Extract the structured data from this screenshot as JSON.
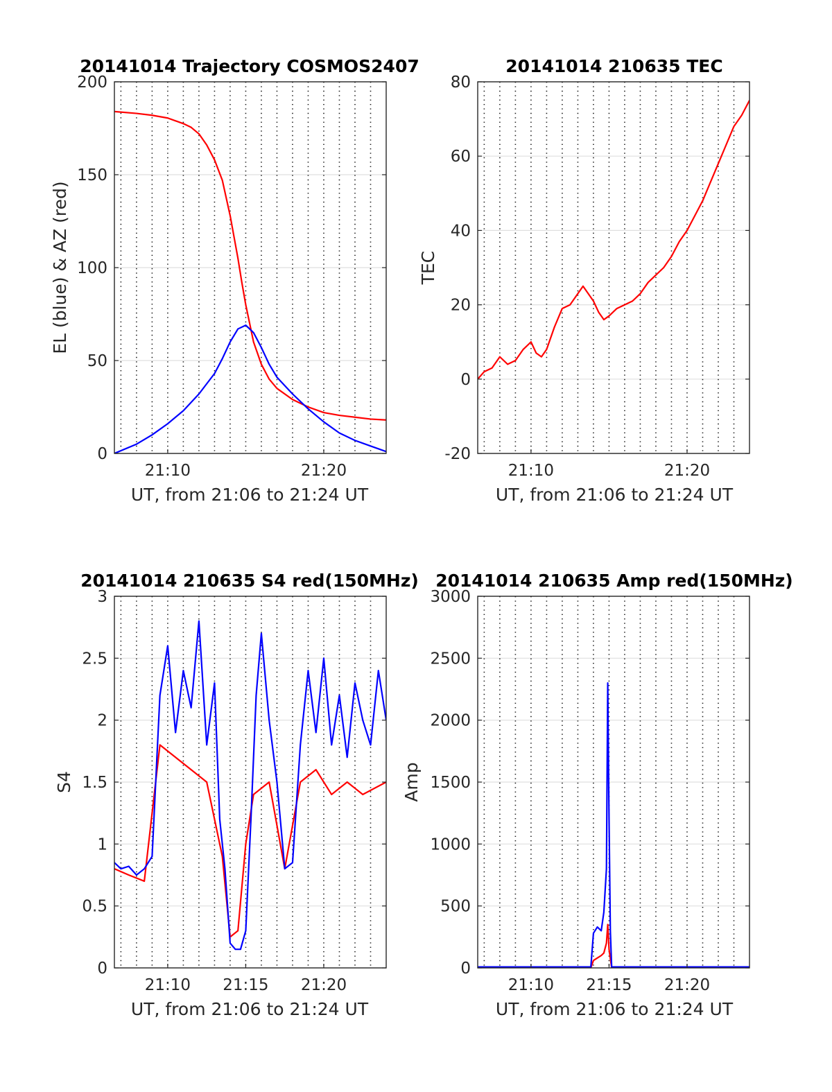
{
  "chart_data": [
    {
      "type": "line",
      "title": "20141014 Trajectory COSMOS2407",
      "xlabel": "UT, from 21:06 to 21:24 UT",
      "ylabel": "EL (blue) & AZ (red)",
      "xlim": [
        "21:06:35",
        "21:24:00"
      ],
      "ylim": [
        0,
        200
      ],
      "xticks": [
        "21:10",
        "21:20"
      ],
      "yticks": [
        0,
        50,
        100,
        150,
        200
      ],
      "colors": [
        "#ff0000",
        "#0000ff"
      ],
      "grid": true,
      "series": [
        {
          "x": [
            "21:06:35",
            "21:08:00",
            "21:09:00",
            "21:10:00",
            "21:10:30",
            "21:11:00",
            "21:11:30",
            "21:12:00",
            "21:12:30",
            "21:13:00",
            "21:13:30",
            "21:14:00",
            "21:14:30",
            "21:14:45",
            "21:15:00",
            "21:15:15",
            "21:15:30",
            "21:16:00",
            "21:16:30",
            "21:17:00",
            "21:18:00",
            "21:19:00",
            "21:20:00",
            "21:21:00",
            "21:22:00",
            "21:23:00",
            "21:24:00"
          ],
          "values": [
            184,
            183,
            182,
            180.5,
            179,
            177.5,
            175.5,
            172,
            166,
            158,
            147,
            128,
            105,
            92,
            80,
            70,
            60,
            48,
            40,
            35,
            29,
            25,
            22,
            20.5,
            19.5,
            18.5,
            18
          ]
        },
        {
          "x": [
            "21:06:35",
            "21:08:00",
            "21:09:00",
            "21:10:00",
            "21:11:00",
            "21:12:00",
            "21:13:00",
            "21:13:30",
            "21:14:00",
            "21:14:30",
            "21:15:00",
            "21:15:30",
            "21:16:00",
            "21:16:30",
            "21:17:00",
            "21:18:00",
            "21:19:00",
            "21:20:00",
            "21:21:00",
            "21:22:00",
            "21:23:00",
            "21:24:00"
          ],
          "values": [
            0,
            5,
            10,
            16,
            23,
            32,
            43,
            51,
            60,
            67,
            69,
            65,
            57,
            48,
            41,
            32,
            24,
            17,
            11,
            7,
            4,
            1
          ]
        }
      ]
    },
    {
      "type": "line",
      "title": "20141014 210635 TEC",
      "xlabel": "UT, from 21:06 to 21:24 UT",
      "ylabel": "TEC",
      "xlim": [
        "21:06:35",
        "21:24:00"
      ],
      "ylim": [
        -20,
        80
      ],
      "xticks": [
        "21:10",
        "21:20"
      ],
      "yticks": [
        -20,
        0,
        20,
        40,
        60,
        80
      ],
      "colors": [
        "#ff0000"
      ],
      "grid": true,
      "series": [
        {
          "x": [
            "21:06:35",
            "21:07:00",
            "21:07:30",
            "21:08:00",
            "21:08:30",
            "21:09:00",
            "21:09:30",
            "21:10:00",
            "21:10:20",
            "21:10:40",
            "21:11:00",
            "21:11:30",
            "21:12:00",
            "21:12:30",
            "21:13:00",
            "21:13:20",
            "21:13:40",
            "21:14:00",
            "21:14:20",
            "21:14:40",
            "21:15:00",
            "21:15:30",
            "21:16:00",
            "21:16:30",
            "21:17:00",
            "21:17:30",
            "21:18:00",
            "21:18:30",
            "21:19:00",
            "21:19:30",
            "21:20:00",
            "21:20:30",
            "21:21:00",
            "21:21:30",
            "21:22:00",
            "21:22:30",
            "21:23:00",
            "21:23:30",
            "21:24:00"
          ],
          "values": [
            0,
            2,
            3,
            6,
            4,
            5,
            8,
            10,
            7,
            6,
            8,
            14,
            19,
            20,
            23,
            25,
            23,
            21,
            18,
            16,
            17,
            19,
            20,
            21,
            23,
            26,
            28,
            30,
            33,
            37,
            40,
            44,
            48,
            53,
            58,
            63,
            68,
            71,
            75
          ]
        }
      ]
    },
    {
      "type": "line",
      "title": "20141014 210635 S4 red(150MHz)",
      "xlabel": "UT, from 21:06 to 21:24 UT",
      "ylabel": "S4",
      "xlim": [
        "21:06:35",
        "21:24:00"
      ],
      "ylim": [
        0,
        3
      ],
      "xticks": [
        "21:10",
        "21:15",
        "21:20"
      ],
      "yticks": [
        0,
        0.5,
        1,
        1.5,
        2,
        2.5,
        3
      ],
      "colors": [
        "#ff0000",
        "#0000ff"
      ],
      "grid": true,
      "series": [
        {
          "x": [
            "21:06:35",
            "21:07:30",
            "21:08:30",
            "21:09:30",
            "21:10:30",
            "21:11:30",
            "21:12:30",
            "21:13:00",
            "21:13:30",
            "21:14:00",
            "21:14:30",
            "21:15:00",
            "21:15:30",
            "21:16:30",
            "21:17:30",
            "21:18:30",
            "21:19:30",
            "21:20:30",
            "21:21:30",
            "21:22:30",
            "21:24:00"
          ],
          "values": [
            0.8,
            0.75,
            0.7,
            1.8,
            1.7,
            1.6,
            1.5,
            1.2,
            0.9,
            0.25,
            0.3,
            1.0,
            1.4,
            1.5,
            0.8,
            1.5,
            1.6,
            1.4,
            1.5,
            1.4,
            1.5
          ]
        },
        {
          "x": [
            "21:06:35",
            "21:07:00",
            "21:07:30",
            "21:08:00",
            "21:08:30",
            "21:09:00",
            "21:09:30",
            "21:10:00",
            "21:10:30",
            "21:11:00",
            "21:11:30",
            "21:12:00",
            "21:12:30",
            "21:13:00",
            "21:13:20",
            "21:13:40",
            "21:14:00",
            "21:14:20",
            "21:14:40",
            "21:15:00",
            "21:15:20",
            "21:15:40",
            "21:16:00",
            "21:16:30",
            "21:17:00",
            "21:17:30",
            "21:18:00",
            "21:18:30",
            "21:19:00",
            "21:19:30",
            "21:20:00",
            "21:20:30",
            "21:21:00",
            "21:21:30",
            "21:22:00",
            "21:22:30",
            "21:23:00",
            "21:23:30",
            "21:24:00"
          ],
          "values": [
            0.85,
            0.8,
            0.82,
            0.75,
            0.8,
            0.9,
            2.2,
            2.6,
            1.9,
            2.4,
            2.1,
            2.8,
            1.8,
            2.3,
            1.2,
            0.8,
            0.2,
            0.15,
            0.15,
            0.3,
            1.2,
            2.2,
            2.7,
            2.0,
            1.5,
            0.8,
            0.85,
            1.8,
            2.4,
            1.9,
            2.5,
            1.8,
            2.2,
            1.7,
            2.3,
            2.0,
            1.8,
            2.4,
            2.0
          ]
        }
      ]
    },
    {
      "type": "line",
      "title": "20141014 210635 Amp red(150MHz)",
      "xlabel": "UT, from 21:06 to 21:24 UT",
      "ylabel": "Amp",
      "xlim": [
        "21:06:35",
        "21:24:00"
      ],
      "ylim": [
        0,
        3000
      ],
      "xticks": [
        "21:10",
        "21:15",
        "21:20"
      ],
      "yticks": [
        0,
        500,
        1000,
        1500,
        2000,
        2500,
        3000
      ],
      "colors": [
        "#ff0000",
        "#0000ff"
      ],
      "grid": true,
      "series": [
        {
          "x": [
            "21:06:35",
            "21:13:50",
            "21:14:00",
            "21:14:15",
            "21:14:30",
            "21:14:40",
            "21:14:50",
            "21:14:55",
            "21:15:00",
            "21:15:10",
            "21:24:00"
          ],
          "values": [
            0,
            0,
            60,
            80,
            100,
            120,
            200,
            350,
            150,
            0,
            0
          ]
        },
        {
          "x": [
            "21:06:35",
            "21:13:50",
            "21:14:00",
            "21:14:15",
            "21:14:30",
            "21:14:40",
            "21:14:50",
            "21:14:55",
            "21:15:00",
            "21:15:05",
            "21:15:10",
            "21:24:00"
          ],
          "values": [
            8,
            8,
            280,
            330,
            300,
            450,
            800,
            2300,
            1200,
            300,
            8,
            8
          ]
        }
      ]
    }
  ]
}
